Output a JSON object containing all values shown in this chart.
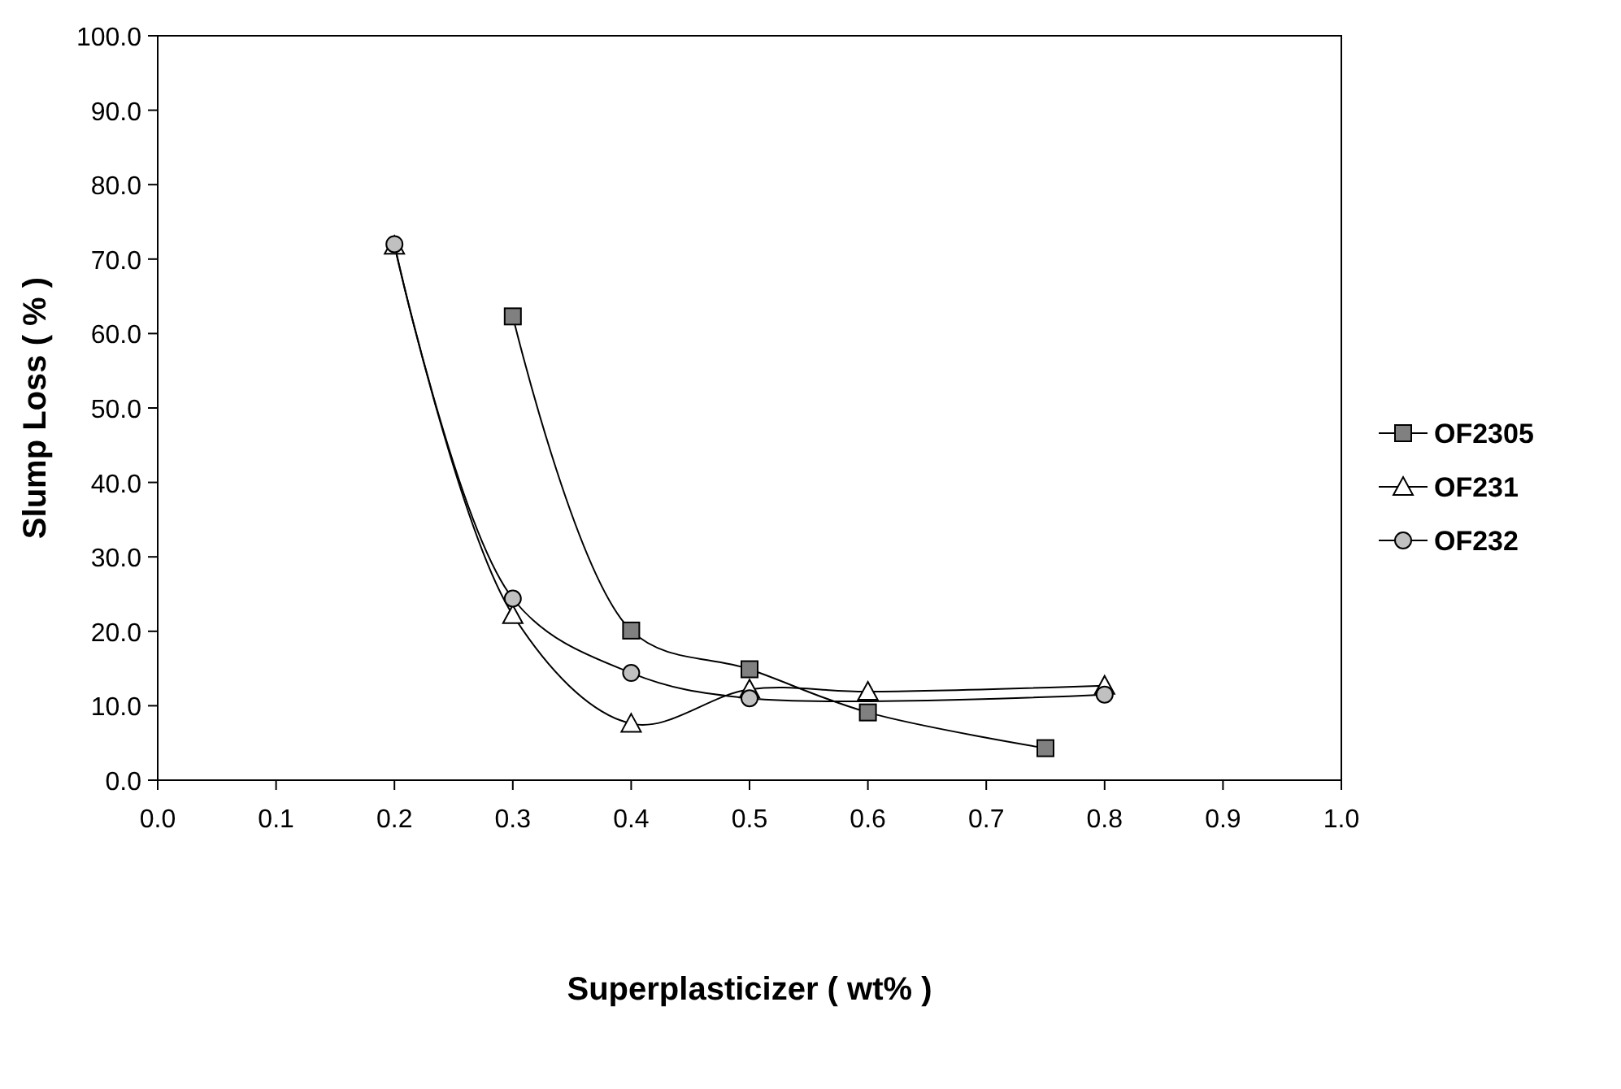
{
  "chart_data": {
    "type": "line",
    "xlabel": "Superplasticizer ( wt% )",
    "ylabel": "Slump Loss ( % )",
    "xlim": [
      0,
      1
    ],
    "ylim": [
      0,
      100
    ],
    "xticks": [
      {
        "value": 0,
        "label": "0.0"
      },
      {
        "value": 0.1,
        "label": "0.1"
      },
      {
        "value": 0.2,
        "label": "0.2"
      },
      {
        "value": 0.3,
        "label": "0.3"
      },
      {
        "value": 0.4,
        "label": "0.4"
      },
      {
        "value": 0.5,
        "label": "0.5"
      },
      {
        "value": 0.6,
        "label": "0.6"
      },
      {
        "value": 0.7,
        "label": "0.7"
      },
      {
        "value": 0.8,
        "label": "0.8"
      },
      {
        "value": 0.9,
        "label": "0.9"
      },
      {
        "value": 1,
        "label": "1.0"
      }
    ],
    "yticks": [
      {
        "value": 0,
        "label": "0.0"
      },
      {
        "value": 10,
        "label": "10.0"
      },
      {
        "value": 20,
        "label": "20.0"
      },
      {
        "value": 30,
        "label": "30.0"
      },
      {
        "value": 40,
        "label": "40.0"
      },
      {
        "value": 50,
        "label": "50.0"
      },
      {
        "value": 60,
        "label": "60.0"
      },
      {
        "value": 70,
        "label": "70.0"
      },
      {
        "value": 80,
        "label": "80.0"
      },
      {
        "value": 90,
        "label": "90.0"
      },
      {
        "value": 100,
        "label": "100.0"
      }
    ],
    "grid": false,
    "legend": "right",
    "series": [
      {
        "name": "OF2305",
        "color": "#808080",
        "marker": "square",
        "x": [
          0.3,
          0.4,
          0.5,
          0.6,
          0.75
        ],
        "values": [
          62.3,
          20.1,
          14.9,
          9.1,
          4.3
        ]
      },
      {
        "name": "OF231",
        "color": "#ffffff",
        "marker": "triangle",
        "x": [
          0.2,
          0.3,
          0.4,
          0.5,
          0.6,
          0.8
        ],
        "values": [
          71.8,
          22.2,
          7.6,
          12.2,
          11.9,
          12.7
        ]
      },
      {
        "name": "OF232",
        "color": "#c0c0c0",
        "marker": "circle",
        "x": [
          0.2,
          0.3,
          0.4,
          0.5,
          0.8
        ],
        "values": [
          72.0,
          24.4,
          14.4,
          11.0,
          11.5
        ]
      }
    ]
  }
}
